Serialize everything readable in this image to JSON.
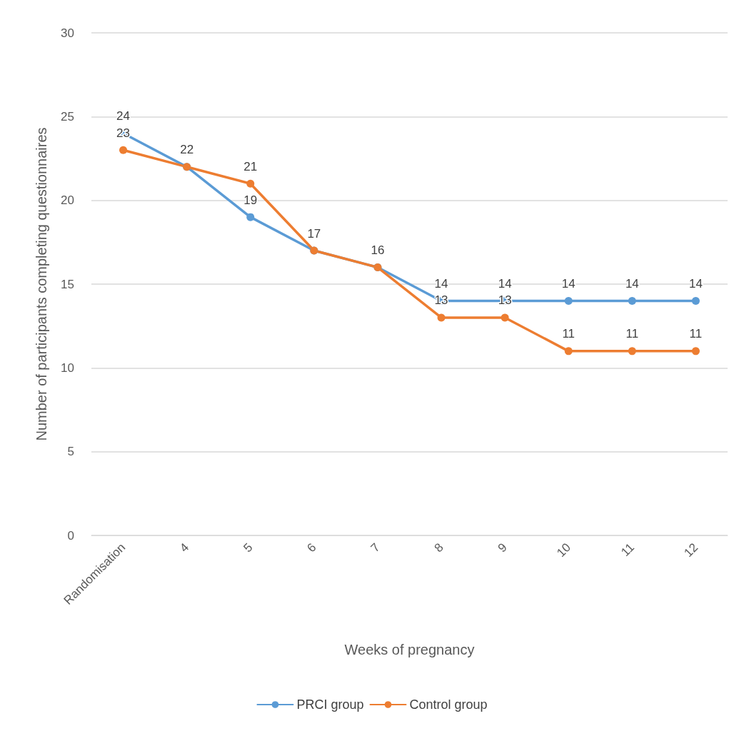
{
  "chart_data": {
    "type": "line",
    "xlabel": "Weeks of pregnancy",
    "ylabel": "Number of participants completing questionnaires",
    "categories": [
      "Randomisation",
      "4",
      "5",
      "6",
      "7",
      "8",
      "9",
      "10",
      "11",
      "12"
    ],
    "series": [
      {
        "name": "PRCI group",
        "color": "#5b9bd5",
        "values": [
          24,
          22,
          19,
          17,
          16,
          14,
          14,
          14,
          14,
          14
        ],
        "value_labels": [
          "24",
          "22",
          "19",
          "17",
          "16",
          "14",
          "14",
          "14",
          "14",
          "14"
        ]
      },
      {
        "name": "Control group",
        "color": "#ed7d31",
        "values": [
          23,
          22,
          21,
          17,
          16,
          13,
          13,
          11,
          11,
          11
        ],
        "value_labels": [
          "23",
          null,
          "21",
          null,
          null,
          "13",
          "13",
          "11",
          "11",
          "11"
        ]
      }
    ],
    "ylim": [
      0,
      30
    ],
    "yticks": [
      0,
      5,
      10,
      15,
      20,
      25,
      30
    ],
    "grid": "y",
    "legend": "bottom",
    "marker": "circle"
  }
}
